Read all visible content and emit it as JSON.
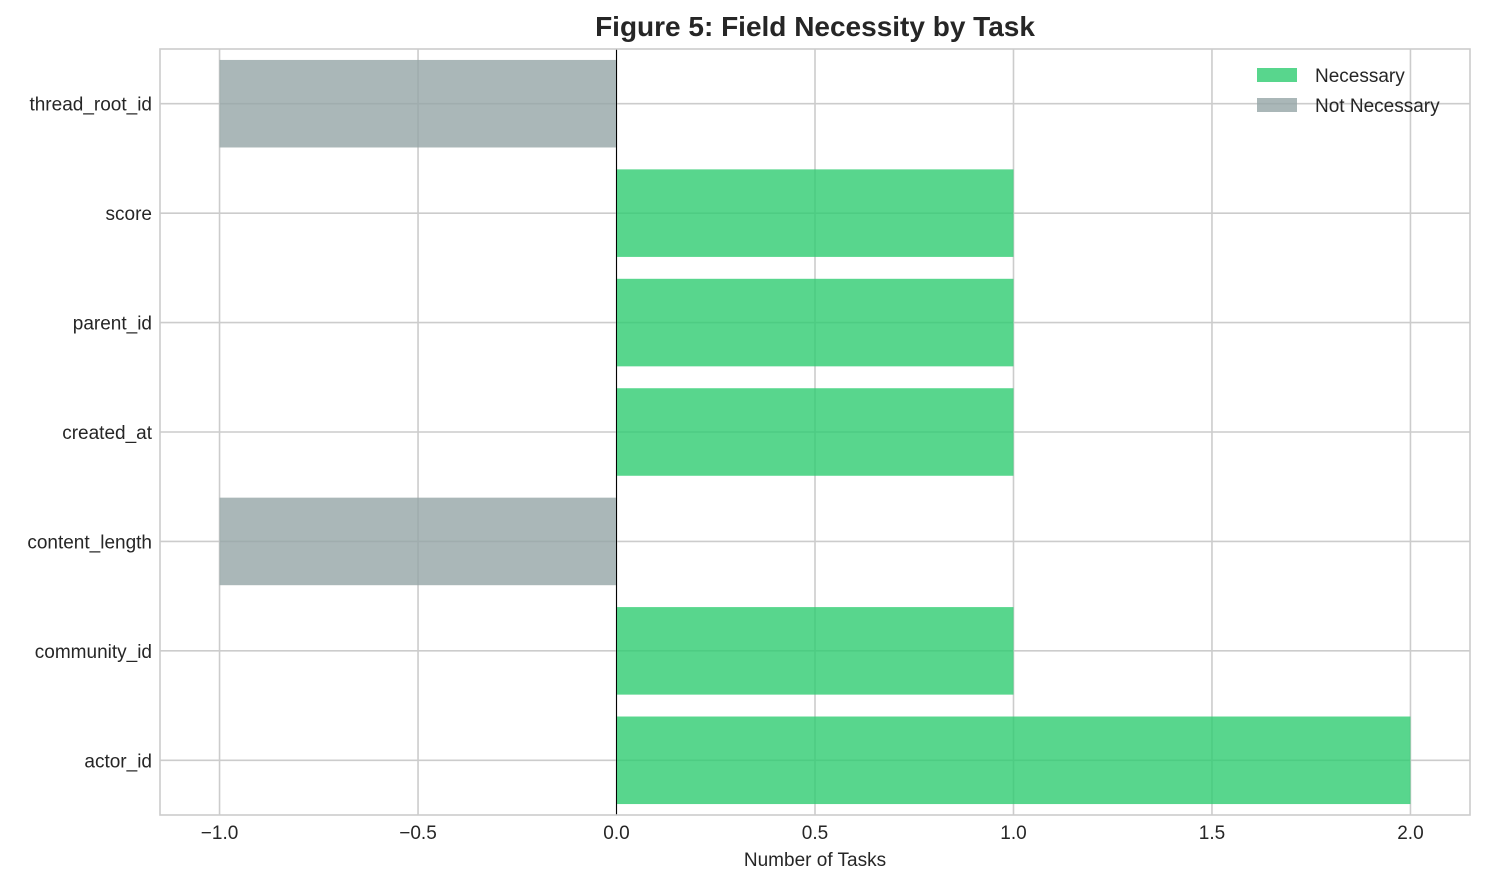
{
  "chart_data": {
    "type": "bar",
    "orientation": "horizontal",
    "title": "Figure 5: Field Necessity by Task",
    "xlabel": "Number of Tasks",
    "ylabel": "",
    "xlim": [
      -1.15,
      2.15
    ],
    "xticks": [
      -1.0,
      -0.5,
      0.0,
      0.5,
      1.0,
      1.5,
      2.0
    ],
    "xtick_labels": [
      "−1.0",
      "−0.5",
      "0.0",
      "0.5",
      "1.0",
      "1.5",
      "2.0"
    ],
    "categories": [
      "thread_root_id",
      "score",
      "parent_id",
      "created_at",
      "content_length",
      "community_id",
      "actor_id"
    ],
    "values": [
      -1,
      1,
      1,
      1,
      -1,
      1,
      2
    ],
    "status": [
      "Not Necessary",
      "Necessary",
      "Necessary",
      "Necessary",
      "Not Necessary",
      "Necessary",
      "Necessary"
    ],
    "legend": {
      "position": "top-right",
      "entries": [
        {
          "label": "Necessary",
          "color": "#2ecc71"
        },
        {
          "label": "Not Necessary",
          "color": "#95a5a6"
        }
      ]
    },
    "colors": {
      "Necessary": "#2ecc71",
      "Not Necessary": "#95a5a6"
    },
    "grid": true
  }
}
